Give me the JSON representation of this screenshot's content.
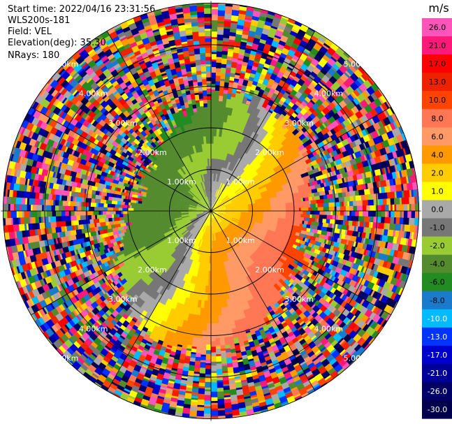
{
  "header": {
    "start_time": "Start time: 2022/04/16 23:31:56",
    "instrument": "WLS200s-181",
    "field": "Field: VEL",
    "elevation": "Elevation(deg): 35.30",
    "nrays": "NRays: 180"
  },
  "chart_data": {
    "type": "heatmap",
    "projection": "polar PPI scan",
    "field": "VEL",
    "units": "m/s",
    "range_rings_km": [
      1.0,
      2.0,
      3.0,
      4.0,
      5.0
    ],
    "ring_labels": [
      "1.00km",
      "2.00km",
      "3.00km",
      "4.00km",
      "5.00km"
    ],
    "max_range_km": 5.0,
    "n_rays": 180,
    "radial_lines_deg": [
      0,
      30,
      60,
      90,
      120,
      150,
      180,
      210,
      240,
      270,
      300,
      330
    ],
    "colorbar": {
      "unit_label": "m/s",
      "ticks": [
        "26.0",
        "21.0",
        "17.0",
        "13.0",
        "10.0",
        "8.0",
        "6.0",
        "4.0",
        "2.0",
        "1.0",
        "0.0",
        "-1.0",
        "-2.0",
        "-4.0",
        "-6.0",
        "-8.0",
        "-10.0",
        "-13.0",
        "-17.0",
        "-21.0",
        "-26.0",
        "-30.0"
      ],
      "colors": [
        "#ff55bb",
        "#ff1a7a",
        "#ff0000",
        "#ee2200",
        "#ff4400",
        "#ff7755",
        "#ff9966",
        "#ff9900",
        "#ffcc00",
        "#ffff00",
        "#a9a9a9",
        "#777777",
        "#99cc33",
        "#558b2f",
        "#228b22",
        "#1a7acc",
        "#00bbff",
        "#0033ff",
        "#0000cc",
        "#000099",
        "#000066",
        "#00004d"
      ]
    },
    "wind_pattern": {
      "description": "dipole: approaching (negative) to the west-northwest, receding (positive) to the east-southeast",
      "negative_center_azimuth_deg": 300,
      "positive_center_azimuth_deg": 120
    }
  }
}
